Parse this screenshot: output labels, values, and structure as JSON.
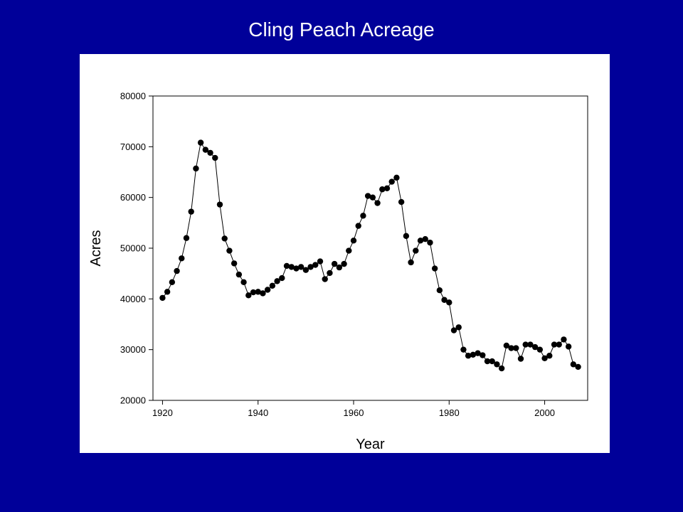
{
  "slide": {
    "title": "Cling Peach Acreage",
    "background_color": "#000099",
    "title_color": "#ffffff"
  },
  "chart_data": {
    "type": "line",
    "title": "Cling Peach Acreage",
    "xlabel": "Year",
    "ylabel": "Acres",
    "xlim": [
      1918,
      2009
    ],
    "ylim": [
      20000,
      80000
    ],
    "xticks": [
      1920,
      1940,
      1960,
      1980,
      2000
    ],
    "yticks": [
      20000,
      30000,
      40000,
      50000,
      60000,
      70000,
      80000
    ],
    "xtick_labels": [
      "1920",
      "1940",
      "1960",
      "1980",
      "2000"
    ],
    "ytick_labels": [
      "20000",
      "30000",
      "40000",
      "50000",
      "60000",
      "70000",
      "80000"
    ],
    "grid": false,
    "marker": "filled-circle",
    "color": "#000000",
    "series": [
      {
        "x": [
          1920,
          1921,
          1922,
          1923,
          1924,
          1925,
          1926,
          1927,
          1928,
          1929,
          1930,
          1931,
          1932,
          1933,
          1934,
          1935,
          1936,
          1937,
          1938,
          1939,
          1940,
          1941,
          1942,
          1943,
          1944,
          1945,
          1946,
          1947,
          1948,
          1949,
          1950,
          1951,
          1952,
          1953,
          1954,
          1955,
          1956,
          1957,
          1958,
          1959,
          1960,
          1961,
          1962,
          1963,
          1964,
          1965,
          1966,
          1967,
          1968,
          1969,
          1970,
          1971,
          1972,
          1973,
          1974,
          1975,
          1976,
          1977,
          1978,
          1979,
          1980,
          1981,
          1982,
          1983,
          1984,
          1985,
          1986,
          1987,
          1988,
          1989,
          1990,
          1991,
          1992,
          1993,
          1994,
          1995,
          1996,
          1997,
          1998,
          1999,
          2000,
          2001,
          2002,
          2003,
          2004,
          2005,
          2006,
          2007
        ],
        "values": [
          40200,
          41400,
          43300,
          45500,
          48000,
          52000,
          57200,
          65700,
          70800,
          69400,
          68800,
          67800,
          58600,
          51900,
          49500,
          47000,
          44800,
          43300,
          40700,
          41300,
          41400,
          41100,
          41800,
          42600,
          43500,
          44100,
          46500,
          46300,
          46000,
          46300,
          45700,
          46300,
          46700,
          47400,
          43900,
          45100,
          46900,
          46200,
          46900,
          49500,
          51500,
          54400,
          56400,
          60300,
          60000,
          58900,
          61600,
          61800,
          63100,
          63900,
          59100,
          52400,
          47200,
          49500,
          51500,
          51800,
          51100,
          46000,
          41700,
          39800,
          39300,
          33800,
          34400,
          30000,
          28800,
          29000,
          29300,
          28900,
          27700,
          27700,
          27100,
          26300,
          30800,
          30300,
          30300,
          28200,
          31000,
          31000,
          30500,
          30000,
          28300,
          28800,
          31000,
          31000,
          32000,
          30600,
          27100,
          26600
        ]
      }
    ]
  }
}
